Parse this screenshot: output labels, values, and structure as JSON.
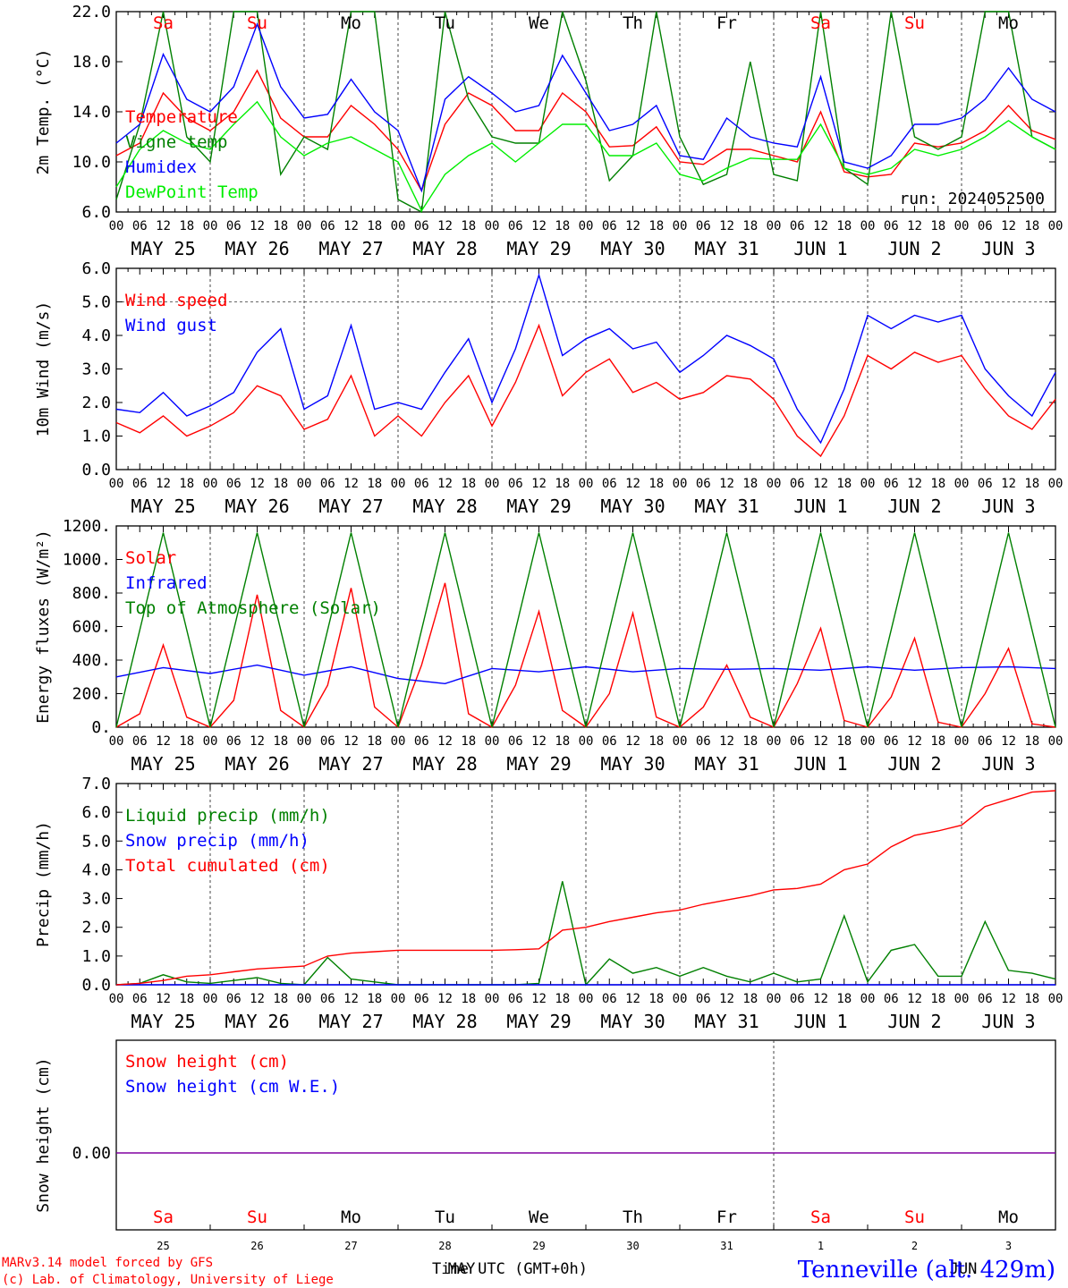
{
  "colors": {
    "red": "#ff0000",
    "green": "#008000",
    "blue": "#0000ff",
    "lightgreen": "#00ee00",
    "purple": "#8000a0",
    "grid": "#555555"
  },
  "days": {
    "top": [
      "Sa",
      "Su",
      "Mo",
      "Tu",
      "We",
      "Th",
      "Fr",
      "Sa",
      "Su",
      "Mo"
    ],
    "weekend": [
      true,
      true,
      false,
      false,
      false,
      false,
      false,
      true,
      true,
      false
    ],
    "dates": [
      "MAY 25",
      "MAY 26",
      "MAY 27",
      "MAY 28",
      "MAY 29",
      "MAY 30",
      "MAY 31",
      "JUN  1",
      "JUN  2",
      "JUN  3"
    ],
    "daynums": [
      "25",
      "26",
      "27",
      "28",
      "29",
      "30",
      "31",
      "1",
      "2",
      "3"
    ],
    "hour_labels": [
      "00",
      "06",
      "12",
      "18"
    ],
    "final_hour_label": "00"
  },
  "footer": {
    "model": "MARv3.14 model forced by GFS",
    "lab": "(c) Lab. of Climatology, University of Liege",
    "time_label": "Time UTC (GMT+0h)",
    "month1": "MAY",
    "month2": "JUN",
    "station": "Tenneville (alt. 429m)"
  },
  "chart_data": [
    {
      "type": "line",
      "ylabel": "2m Temp. (°C)",
      "ylim": [
        6,
        22
      ],
      "yticks": [
        "6.0",
        "10.0",
        "14.0",
        "18.0",
        "22.0"
      ],
      "annotation": "run: 2024052500",
      "x_unit": "hours from 2024-05-25 00 UTC",
      "series": [
        {
          "name": "Temperature",
          "color": "red",
          "x": [
            0,
            6,
            12,
            18,
            24,
            30,
            36,
            42,
            48,
            54,
            60,
            66,
            72,
            78,
            84,
            90,
            96,
            102,
            108,
            114,
            120,
            126,
            132,
            138,
            144,
            150,
            156,
            162,
            168,
            174,
            180,
            186,
            192,
            198,
            204,
            210,
            216,
            222,
            228,
            234,
            240
          ],
          "values": [
            10.5,
            11.5,
            15.5,
            13.5,
            12.5,
            14,
            17.3,
            13.5,
            12,
            12,
            14.5,
            13,
            11,
            7.7,
            13,
            15.5,
            14.5,
            12.5,
            12.5,
            15.5,
            14,
            11.2,
            11.3,
            12.8,
            10,
            9.8,
            11,
            11,
            10.5,
            10,
            14,
            9.2,
            8.8,
            9,
            11.5,
            11.2,
            11.5,
            12.5,
            14.5,
            12.5,
            11.8
          ]
        },
        {
          "name": "Vigne temp",
          "color": "green",
          "x": [
            0,
            6,
            12,
            18,
            24,
            30,
            36,
            42,
            48,
            54,
            60,
            66,
            72,
            78,
            84,
            90,
            96,
            102,
            108,
            114,
            120,
            126,
            132,
            138,
            144,
            150,
            156,
            162,
            168,
            174,
            180,
            186,
            192,
            198,
            204,
            210,
            216,
            222,
            228,
            234,
            240
          ],
          "values": [
            7,
            13,
            22,
            12,
            10,
            22,
            22,
            9,
            12,
            11,
            22,
            22,
            7,
            6,
            22,
            15,
            12,
            11.5,
            11.5,
            22,
            16.5,
            8.5,
            10.5,
            22,
            12,
            8.2,
            9,
            18,
            9,
            8.5,
            22,
            9.5,
            8.2,
            22,
            12,
            11,
            12,
            22,
            22,
            12,
            11
          ]
        },
        {
          "name": "Humidex",
          "color": "blue",
          "x": [
            0,
            6,
            12,
            18,
            24,
            30,
            36,
            42,
            48,
            54,
            60,
            66,
            72,
            78,
            84,
            90,
            96,
            102,
            108,
            114,
            120,
            126,
            132,
            138,
            144,
            150,
            156,
            162,
            168,
            174,
            180,
            186,
            192,
            198,
            204,
            210,
            216,
            222,
            228,
            234,
            240
          ],
          "values": [
            11.5,
            13,
            18.6,
            15,
            14,
            16,
            21,
            16,
            13.5,
            13.8,
            16.6,
            14,
            12.5,
            7.7,
            15,
            16.8,
            15.5,
            14,
            14.5,
            18.5,
            15.5,
            12.5,
            13,
            14.5,
            10.5,
            10.2,
            13.5,
            12,
            11.5,
            11.2,
            16.8,
            10,
            9.5,
            10.5,
            13,
            13,
            13.5,
            15,
            17.5,
            15,
            14
          ]
        },
        {
          "name": "DewPoint Temp",
          "color": "lightgreen",
          "x": [
            0,
            6,
            12,
            18,
            24,
            30,
            36,
            42,
            48,
            54,
            60,
            66,
            72,
            78,
            84,
            90,
            96,
            102,
            108,
            114,
            120,
            126,
            132,
            138,
            144,
            150,
            156,
            162,
            168,
            174,
            180,
            186,
            192,
            198,
            204,
            210,
            216,
            222,
            228,
            234,
            240
          ],
          "values": [
            8,
            11,
            12.5,
            11.5,
            11,
            13,
            14.8,
            12,
            10.5,
            11.5,
            12,
            11,
            10,
            6.1,
            9,
            10.5,
            11.5,
            10,
            11.5,
            13,
            13,
            10.5,
            10.5,
            11.5,
            9,
            8.5,
            9.5,
            10.3,
            10.2,
            10.2,
            13,
            9.5,
            9,
            9.5,
            11,
            10.5,
            11,
            12,
            13.3,
            12,
            11
          ]
        }
      ]
    },
    {
      "type": "line",
      "ylabel": "10m Wind (m/s)",
      "ylim": [
        0,
        6
      ],
      "yticks": [
        "0.0",
        "1.0",
        "2.0",
        "3.0",
        "4.0",
        "5.0",
        "6.0"
      ],
      "x_unit": "hours from 2024-05-25 00 UTC",
      "series": [
        {
          "name": "Wind speed",
          "color": "red",
          "x": [
            0,
            6,
            12,
            18,
            24,
            30,
            36,
            42,
            48,
            54,
            60,
            66,
            72,
            78,
            84,
            90,
            96,
            102,
            108,
            114,
            120,
            126,
            132,
            138,
            144,
            150,
            156,
            162,
            168,
            174,
            180,
            186,
            192,
            198,
            204,
            210,
            216,
            222,
            228,
            234,
            240
          ],
          "values": [
            1.4,
            1.1,
            1.6,
            1.0,
            1.3,
            1.7,
            2.5,
            2.2,
            1.2,
            1.5,
            2.8,
            1.0,
            1.6,
            1.0,
            2.0,
            2.8,
            1.3,
            2.6,
            4.3,
            2.2,
            2.9,
            3.3,
            2.3,
            2.6,
            2.1,
            2.3,
            2.8,
            2.7,
            2.1,
            1.0,
            0.4,
            1.6,
            3.4,
            3.0,
            3.5,
            3.2,
            3.4,
            2.4,
            1.6,
            1.2,
            2.1
          ]
        },
        {
          "name": "Wind gust",
          "color": "blue",
          "x": [
            0,
            6,
            12,
            18,
            24,
            30,
            36,
            42,
            48,
            54,
            60,
            66,
            72,
            78,
            84,
            90,
            96,
            102,
            108,
            114,
            120,
            126,
            132,
            138,
            144,
            150,
            156,
            162,
            168,
            174,
            180,
            186,
            192,
            198,
            204,
            210,
            216,
            222,
            228,
            234,
            240
          ],
          "values": [
            1.8,
            1.7,
            2.3,
            1.6,
            1.9,
            2.3,
            3.5,
            4.2,
            1.8,
            2.2,
            4.3,
            1.8,
            2.0,
            1.8,
            2.9,
            3.9,
            2.0,
            3.6,
            5.8,
            3.4,
            3.9,
            4.2,
            3.6,
            3.8,
            2.9,
            3.4,
            4.0,
            3.7,
            3.3,
            1.8,
            0.8,
            2.4,
            4.6,
            4.2,
            4.6,
            4.4,
            4.6,
            3.0,
            2.2,
            1.6,
            2.9
          ]
        }
      ]
    },
    {
      "type": "line",
      "ylabel": "Energy fluxes (W/m²)",
      "ylim": [
        0,
        1200
      ],
      "yticks": [
        "0.",
        "200.",
        "400.",
        "600.",
        "800.",
        "1000.",
        "1200."
      ],
      "x_unit": "hours from 2024-05-25 00 UTC",
      "series": [
        {
          "name": "Solar",
          "color": "red",
          "x": [
            0,
            6,
            12,
            18,
            24,
            30,
            36,
            42,
            48,
            54,
            60,
            66,
            72,
            78,
            84,
            90,
            96,
            102,
            108,
            114,
            120,
            126,
            132,
            138,
            144,
            150,
            156,
            162,
            168,
            174,
            180,
            186,
            192,
            198,
            204,
            210,
            216,
            222,
            228,
            234,
            240
          ],
          "values": [
            0,
            80,
            490,
            60,
            0,
            160,
            790,
            100,
            0,
            250,
            830,
            120,
            0,
            370,
            860,
            80,
            0,
            250,
            690,
            100,
            0,
            200,
            680,
            60,
            0,
            120,
            370,
            60,
            0,
            260,
            590,
            40,
            0,
            180,
            530,
            30,
            0,
            200,
            470,
            20,
            0
          ]
        },
        {
          "name": "Infrared",
          "color": "blue",
          "x": [
            0,
            12,
            24,
            36,
            48,
            60,
            72,
            84,
            96,
            108,
            120,
            132,
            144,
            156,
            168,
            180,
            192,
            204,
            216,
            228,
            240
          ],
          "values": [
            300,
            355,
            320,
            370,
            310,
            360,
            290,
            260,
            350,
            330,
            360,
            330,
            350,
            345,
            350,
            340,
            360,
            340,
            355,
            360,
            350
          ]
        },
        {
          "name": "Top of Atmosphere (Solar)",
          "color": "green",
          "x": [
            0,
            6,
            12,
            18,
            24,
            30,
            36,
            42,
            48,
            54,
            60,
            66,
            72,
            78,
            84,
            90,
            96,
            102,
            108,
            114,
            120,
            126,
            132,
            138,
            144,
            150,
            156,
            162,
            168,
            174,
            180,
            186,
            192,
            198,
            204,
            210,
            216,
            222,
            228,
            234,
            240
          ],
          "values": [
            0,
            580,
            1160,
            580,
            0,
            580,
            1160,
            580,
            0,
            580,
            1160,
            580,
            0,
            580,
            1160,
            580,
            0,
            580,
            1160,
            580,
            0,
            580,
            1160,
            580,
            0,
            580,
            1160,
            580,
            0,
            580,
            1160,
            580,
            0,
            580,
            1160,
            580,
            0,
            580,
            1160,
            580,
            0
          ]
        }
      ]
    },
    {
      "type": "line",
      "ylabel": "Precip (mm/h)",
      "ylim": [
        0,
        7
      ],
      "yticks": [
        "0.0",
        "1.0",
        "2.0",
        "3.0",
        "4.0",
        "5.0",
        "6.0",
        "7.0"
      ],
      "x_unit": "hours from 2024-05-25 00 UTC",
      "series": [
        {
          "name": "Liquid precip (mm/h)",
          "color": "green",
          "x": [
            0,
            6,
            12,
            18,
            24,
            30,
            36,
            42,
            48,
            54,
            60,
            66,
            72,
            78,
            84,
            90,
            96,
            102,
            108,
            114,
            120,
            126,
            132,
            138,
            144,
            150,
            156,
            162,
            168,
            174,
            180,
            186,
            192,
            198,
            204,
            210,
            216,
            222,
            228,
            234,
            240
          ],
          "values": [
            0,
            0.05,
            0.35,
            0.1,
            0.05,
            0.15,
            0.25,
            0.05,
            0,
            0.95,
            0.2,
            0.1,
            0,
            0,
            0,
            0,
            0,
            0,
            0.05,
            3.6,
            0,
            0.9,
            0.4,
            0.6,
            0.3,
            0.6,
            0.3,
            0.1,
            0.4,
            0.1,
            0.2,
            2.4,
            0.1,
            1.2,
            1.4,
            0.3,
            0.3,
            2.2,
            0.5,
            0.4,
            0.2
          ]
        },
        {
          "name": "Snow precip (mm/h)",
          "color": "blue",
          "x": [
            0,
            240
          ],
          "values": [
            0,
            0
          ]
        },
        {
          "name": "Total cumulated (cm)",
          "color": "red",
          "x": [
            0,
            6,
            12,
            18,
            24,
            30,
            36,
            42,
            48,
            54,
            60,
            66,
            72,
            78,
            84,
            90,
            96,
            102,
            108,
            114,
            120,
            126,
            132,
            138,
            144,
            150,
            156,
            162,
            168,
            174,
            180,
            186,
            192,
            198,
            204,
            210,
            216,
            222,
            228,
            234,
            240
          ],
          "values": [
            0,
            0.05,
            0.15,
            0.3,
            0.35,
            0.45,
            0.55,
            0.6,
            0.65,
            1.0,
            1.1,
            1.15,
            1.2,
            1.2,
            1.2,
            1.2,
            1.2,
            1.22,
            1.25,
            1.9,
            2.0,
            2.2,
            2.35,
            2.5,
            2.6,
            2.8,
            2.95,
            3.1,
            3.3,
            3.35,
            3.5,
            4.0,
            4.2,
            4.8,
            5.2,
            5.35,
            5.55,
            6.2,
            6.45,
            6.7,
            6.75
          ]
        }
      ]
    },
    {
      "type": "line",
      "ylabel": "Snow height (cm)",
      "yticks": [
        "0.00"
      ],
      "series": [
        {
          "name": "Snow height (cm)",
          "color": "red",
          "x": [
            0,
            240
          ],
          "values": [
            0,
            0
          ]
        },
        {
          "name": "Snow height (cm W.E.)",
          "color": "blue",
          "x": [
            0,
            240
          ],
          "values": [
            0,
            0
          ]
        }
      ]
    }
  ]
}
